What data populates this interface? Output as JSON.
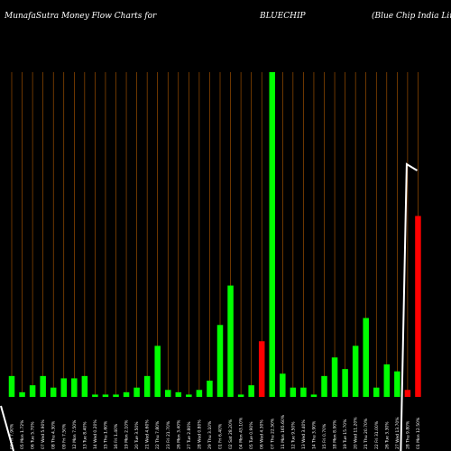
{
  "chart_data": {
    "type": "bar",
    "title_left": "MunafaSutra  Money Flow  Charts for",
    "title_symbol": "BLUECHIP",
    "title_right": "(Blue   Chip India  Limited)",
    "ylim": [
      0,
      140
    ],
    "grid": true,
    "background_color": "#000000",
    "grid_color": "#b35a00",
    "up_color": "#00ff00",
    "down_color": "#ff0000",
    "line_color": "#ffffff",
    "categories": [
      "02 Feb 2024",
      "05 Feb 2024",
      "06 Feb 2024",
      "07 Feb 2024",
      "08 Feb 2024",
      "09 Feb 2024",
      "12 Feb 2024",
      "13 Feb 2024",
      "14 Feb 2024",
      "15 Feb 2024",
      "16 Feb 2024",
      "19 Feb 2024",
      "20 Feb 2024",
      "21 Feb 2024",
      "22 Feb 2024",
      "23 Feb 2024",
      "26 Feb 2024",
      "27 Feb 2024",
      "28 Feb 2024",
      "29 Feb 2024",
      "01 Mar 2024",
      "02 Mar 2024",
      "04 Mar 2024",
      "05 Mar 2024",
      "06 Mar 2024",
      "07 Mar 2024",
      "11 Mar 2024",
      "12 Mar 2024",
      "13 Mar 2024",
      "14 Mar 2024",
      "15 Mar 2024",
      "18 Mar 2024",
      "19 Mar 2024",
      "20 Mar 2024",
      "21 Mar 2024",
      "22 Mar 2024",
      "26 Mar 2024",
      "27 Mar 2024",
      "28 Mar 2024",
      "01 Apr 2024"
    ],
    "tick_labels": [
      "02 Fri 7.90%",
      "05 Mon 1.72%",
      "06 Tue 5.70%",
      "07 Wed 5.90%",
      "08 Thu 4.30%",
      "09 Fri 7.50%",
      "12 Mon 7.50%",
      "13 Tue 8.40%",
      "14 Wed 0.20%",
      "15 Thu 1.60%",
      "16 Fri 1.40%",
      "19 Mon 2.10%",
      "20 Tue 3.50%",
      "21 Wed 4.60%",
      "22 Thu 7.80%",
      "23 Fri 21.70%",
      "26 Mon 3.40%",
      "27 Tue 2.80%",
      "28 Wed 0.80%",
      "29 Thu 3.10%",
      "01 Fri 6.40%",
      "02 Sat 28.20%",
      "04 Mon 43.10%",
      "05 Tue 0.90%",
      "06 Wed 4.30%",
      "07 Thu 22.50%",
      "11 Mon 165.60%",
      "12 Tue 9.50%",
      "13 Wed 3.40%",
      "14 Thu 3.90%",
      "15 Fri 0.70%",
      "18 Mon 8.90%",
      "19 Tue 15.70%",
      "20 Wed 11.20%",
      "21 Thu 20.70%",
      "22 Fri 31.00%",
      "26 Tue 3.30%",
      "27 Wed 13.70%",
      "28 Thu 9.80%",
      "01 Mon 12.50%"
    ],
    "series": [
      {
        "values": [
          9,
          2,
          5,
          9,
          4,
          8,
          8,
          9,
          1,
          1,
          1,
          2,
          4,
          9,
          22,
          3,
          2,
          1,
          3,
          7,
          31,
          48,
          1,
          5,
          24,
          140,
          10,
          4,
          4,
          1,
          9,
          17,
          12,
          22,
          34,
          4,
          14,
          11,
          3,
          78
        ],
        "directions": [
          "up",
          "up",
          "up",
          "up",
          "up",
          "up",
          "up",
          "up",
          "up",
          "up",
          "up",
          "up",
          "up",
          "up",
          "up",
          "up",
          "up",
          "up",
          "up",
          "up",
          "up",
          "up",
          "up",
          "up",
          "down",
          "up",
          "up",
          "up",
          "up",
          "up",
          "up",
          "up",
          "up",
          "up",
          "up",
          "up",
          "up",
          "up",
          "down",
          "down"
        ]
      }
    ],
    "price_line": [
      [
        0,
        -10
      ],
      [
        0,
        -999
      ],
      [
        38,
        100
      ],
      [
        39,
        97
      ]
    ]
  }
}
